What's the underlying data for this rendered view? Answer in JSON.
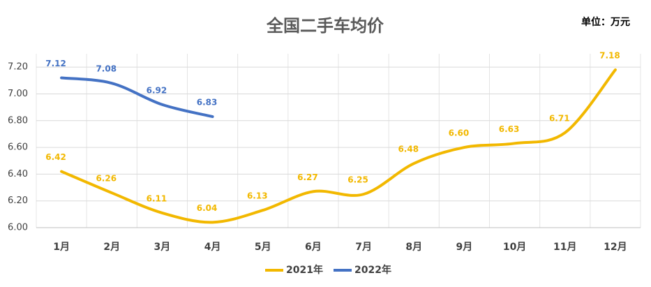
{
  "chart_data": {
    "type": "line",
    "title": "全国二手车均价",
    "unit": "单位：万元",
    "categories": [
      "1月",
      "2月",
      "3月",
      "4月",
      "5月",
      "6月",
      "7月",
      "8月",
      "9月",
      "10月",
      "11月",
      "12月"
    ],
    "series": [
      {
        "name": "2021年",
        "color": "#f2b800",
        "values": [
          6.42,
          6.26,
          6.11,
          6.04,
          6.13,
          6.27,
          6.25,
          6.48,
          6.6,
          6.63,
          6.71,
          7.18
        ],
        "value_labels": [
          "6.42",
          "6.26",
          "6.11",
          "6.04",
          "6.13",
          "6.27",
          "6.25",
          "6.48",
          "6.60",
          "6.63",
          "6.71",
          "7.18"
        ]
      },
      {
        "name": "2022年",
        "color": "#4472c4",
        "values": [
          7.12,
          7.08,
          6.92,
          6.83,
          null,
          null,
          null,
          null,
          null,
          null,
          null,
          null
        ],
        "value_labels": [
          "7.12",
          "7.08",
          "6.92",
          "6.83",
          null,
          null,
          null,
          null,
          null,
          null,
          null,
          null
        ]
      }
    ],
    "ylim": [
      6.0,
      7.3
    ],
    "yticks": [
      {
        "value": 6.0,
        "label": "6.00"
      },
      {
        "value": 6.2,
        "label": "6.20"
      },
      {
        "value": 6.4,
        "label": "6.40"
      },
      {
        "value": 6.6,
        "label": "6.60"
      },
      {
        "value": 6.8,
        "label": "6.80"
      },
      {
        "value": 7.0,
        "label": "7.00"
      },
      {
        "value": 7.2,
        "label": "7.20"
      }
    ],
    "grid": true,
    "smooth": true,
    "legend": "bottom"
  }
}
